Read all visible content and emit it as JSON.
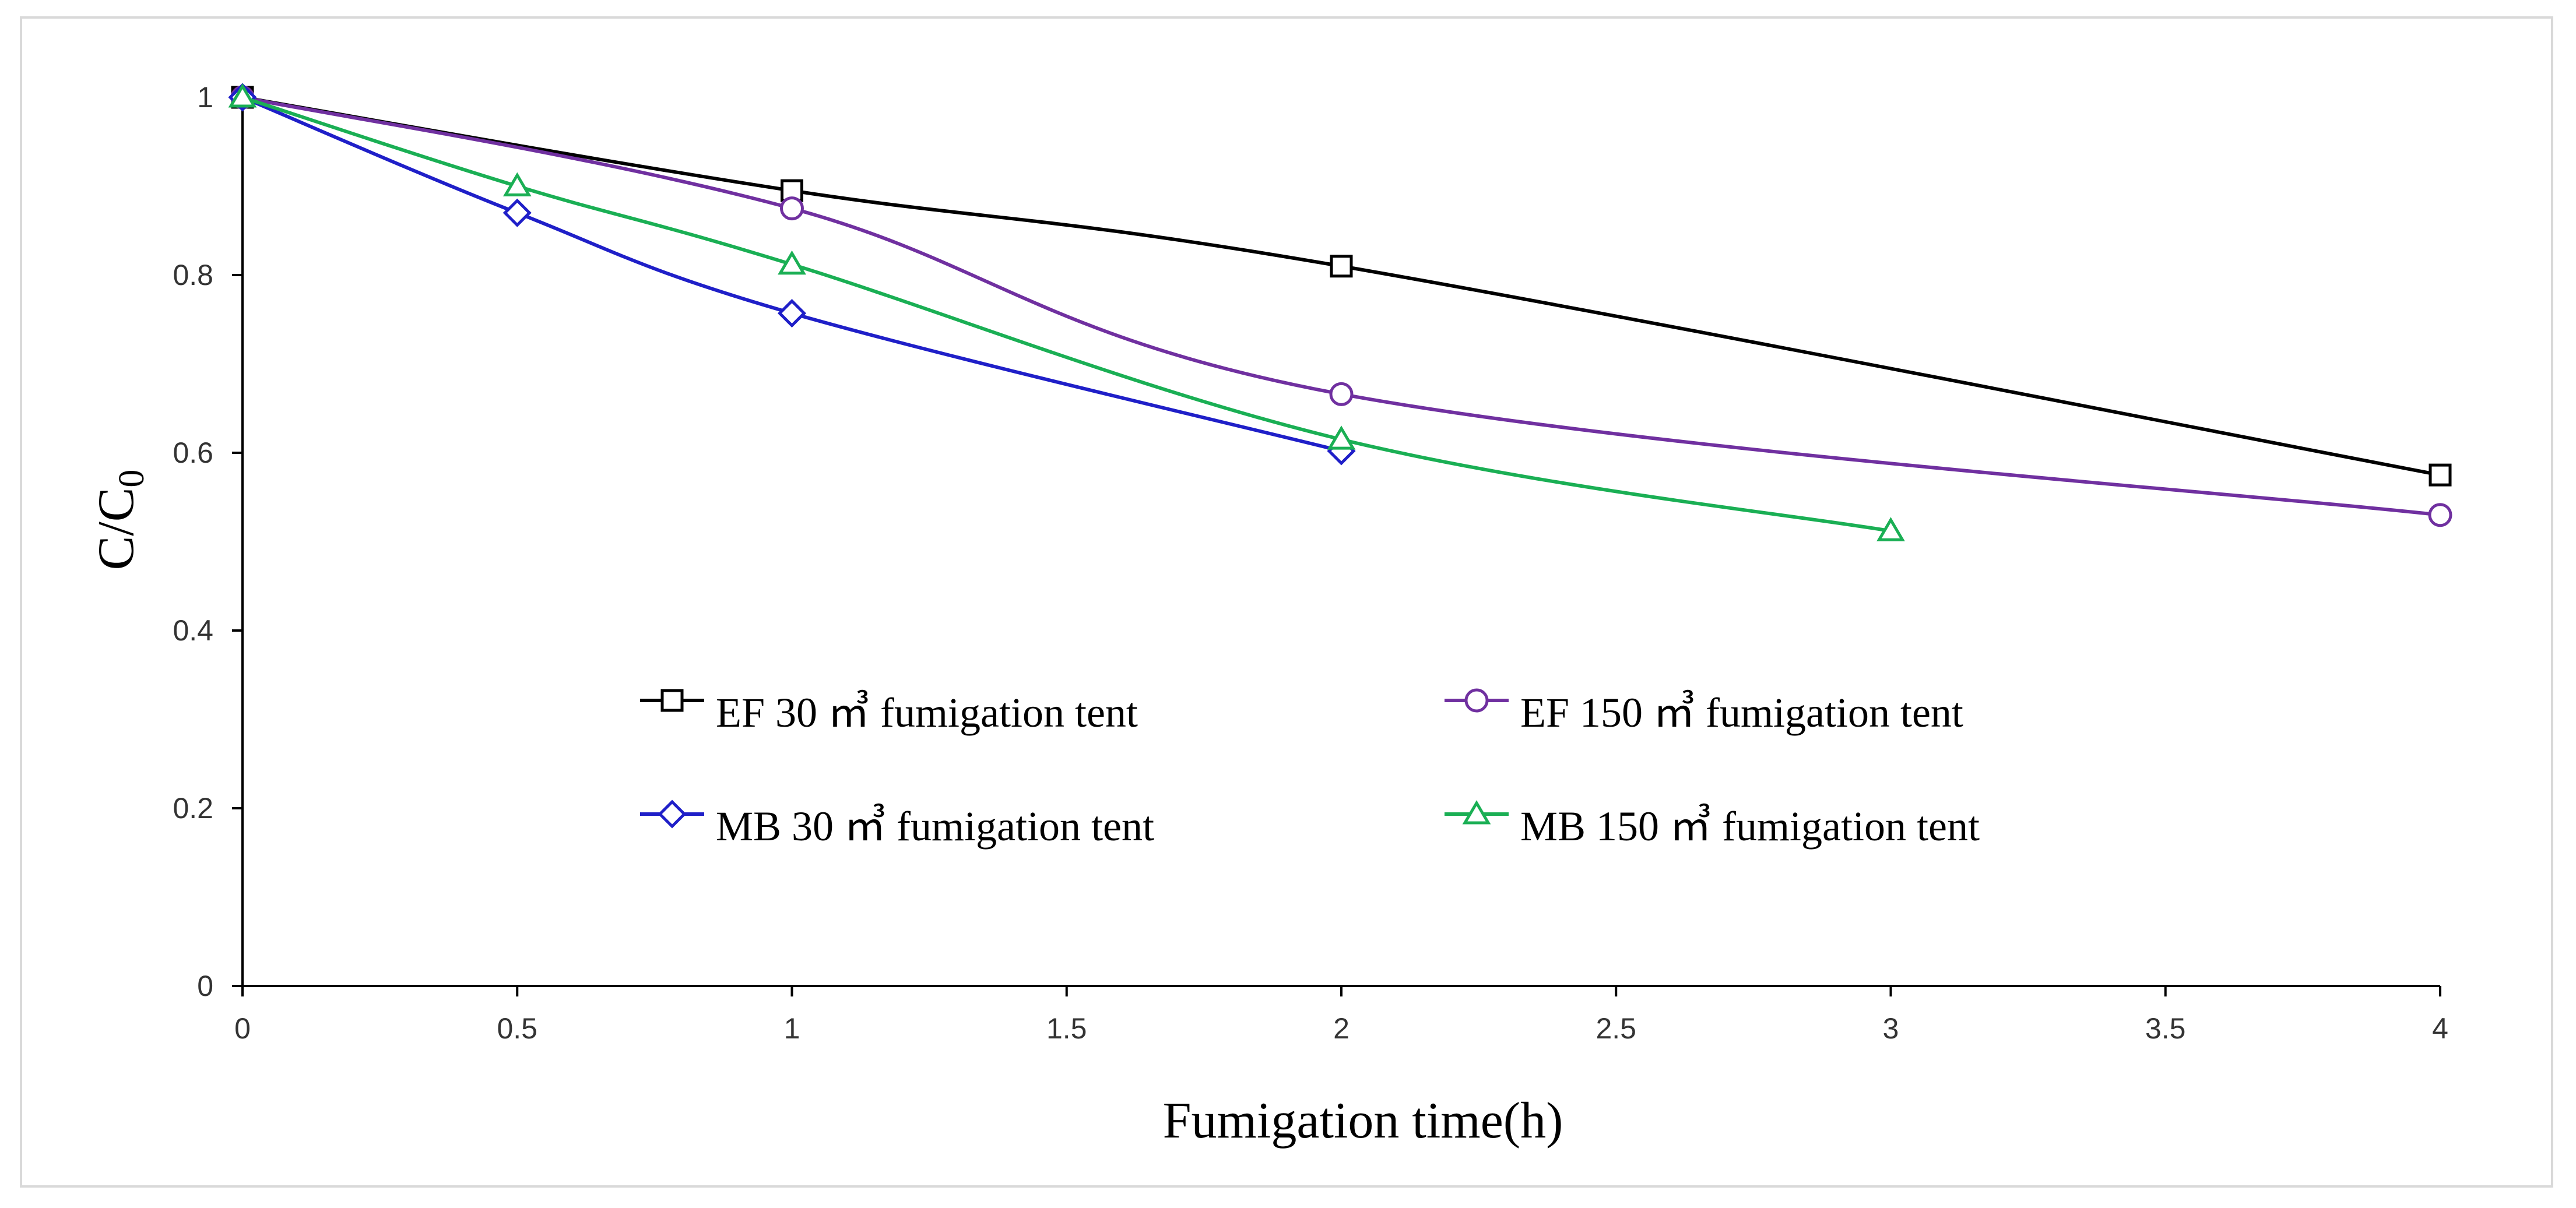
{
  "chart_data": {
    "type": "line",
    "xlabel": "Fumigation time(h)",
    "ylabel": "C/C",
    "ylabel_sub": "0",
    "xlim": [
      0,
      4
    ],
    "ylim": [
      0,
      1
    ],
    "x_ticks": [
      "0",
      "0.5",
      "1",
      "1.5",
      "2",
      "2.5",
      "3",
      "3.5",
      "4"
    ],
    "y_ticks": [
      "0",
      "0.2",
      "0.4",
      "0.6",
      "0.8",
      "1"
    ],
    "grid": false,
    "legend_position": "center",
    "series": [
      {
        "name": "EF 30 ㎥ fumigation tent",
        "color": "#000000",
        "marker": "square",
        "x": [
          0,
          1,
          2,
          4
        ],
        "y": [
          1.0,
          0.895,
          0.81,
          0.575
        ]
      },
      {
        "name": "EF 150 ㎥ fumigation tent",
        "color": "#7030a0",
        "marker": "circle",
        "x": [
          0,
          1,
          2,
          4
        ],
        "y": [
          1.0,
          0.875,
          0.666,
          0.53
        ]
      },
      {
        "name": "MB 30 ㎥ fumigation tent",
        "color": "#1f1fc8",
        "marker": "diamond",
        "x": [
          0,
          0.5,
          1,
          2
        ],
        "y": [
          1.0,
          0.87,
          0.757,
          0.602
        ]
      },
      {
        "name": "MB 150 ㎥ fumigation tent",
        "color": "#1aaf54",
        "marker": "triangle",
        "x": [
          0,
          0.5,
          1,
          2,
          3
        ],
        "y": [
          1.0,
          0.9,
          0.812,
          0.615,
          0.512
        ]
      }
    ]
  }
}
